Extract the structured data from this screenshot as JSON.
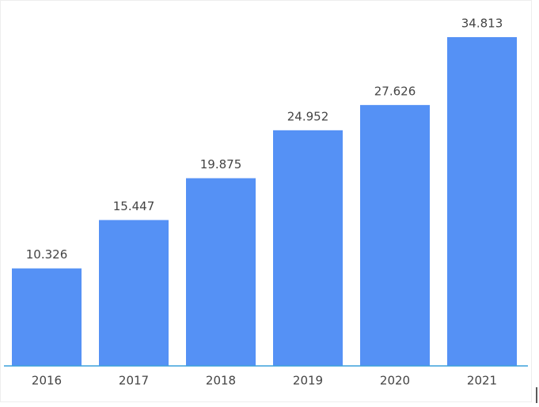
{
  "chart_data": {
    "type": "bar",
    "categories": [
      "2016",
      "2017",
      "2018",
      "2019",
      "2020",
      "2021"
    ],
    "values": [
      10.326,
      15.447,
      19.875,
      24.952,
      27.626,
      34.813
    ],
    "color": "#5591f5"
  }
}
